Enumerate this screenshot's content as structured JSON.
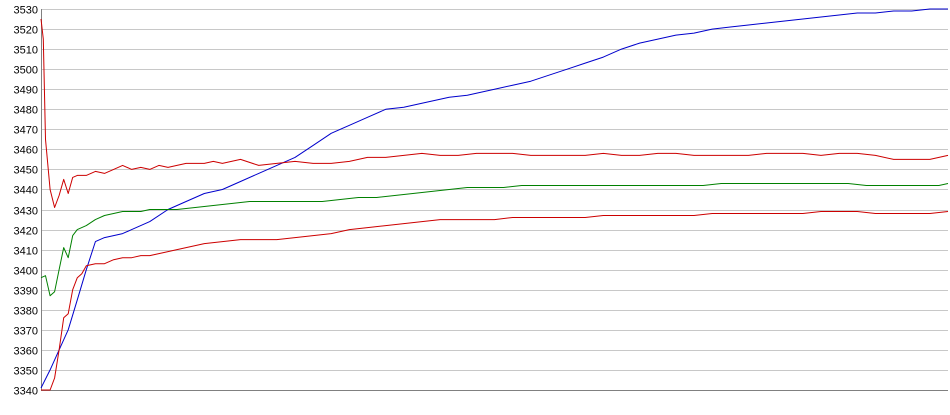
{
  "chart_data": {
    "type": "line",
    "title": "",
    "xlabel": "",
    "ylabel": "",
    "ylim": [
      3340,
      3530
    ],
    "yticks": [
      3340,
      3350,
      3360,
      3370,
      3380,
      3390,
      3400,
      3410,
      3420,
      3430,
      3440,
      3450,
      3460,
      3470,
      3480,
      3490,
      3500,
      3510,
      3520,
      3530
    ],
    "grid": true,
    "legend": "none",
    "xlim": [
      0,
      200
    ],
    "series": [
      {
        "color": "#0000cc",
        "x": [
          0,
          2,
          4,
          6,
          8,
          10,
          12,
          14,
          16,
          18,
          20,
          24,
          28,
          32,
          36,
          40,
          44,
          48,
          52,
          56,
          60,
          64,
          68,
          72,
          76,
          80,
          84,
          88,
          90,
          94,
          98,
          100,
          104,
          108,
          112,
          116,
          120,
          124,
          128,
          132,
          136,
          140,
          144,
          148,
          152,
          156,
          160,
          164,
          168,
          172,
          176,
          180,
          184,
          188,
          192,
          196,
          200
        ],
        "y": [
          3341,
          3350,
          3360,
          3370,
          3385,
          3400,
          3414,
          3416,
          3417,
          3418,
          3420,
          3424,
          3430,
          3434,
          3438,
          3440,
          3444,
          3448,
          3452,
          3456,
          3462,
          3468,
          3472,
          3476,
          3480,
          3481,
          3483,
          3485,
          3486,
          3487,
          3489,
          3490,
          3492,
          3494,
          3497,
          3500,
          3503,
          3506,
          3510,
          3513,
          3515,
          3517,
          3518,
          3520,
          3521,
          3522,
          3523,
          3524,
          3525,
          3526,
          3527,
          3528,
          3528,
          3529,
          3529,
          3530,
          3530
        ]
      },
      {
        "color": "#cc0000",
        "x": [
          0,
          0.5,
          1,
          2,
          3,
          4,
          5,
          6,
          7,
          8,
          10,
          12,
          14,
          16,
          18,
          20,
          22,
          24,
          26,
          28,
          30,
          32,
          34,
          36,
          38,
          40,
          44,
          48,
          52,
          56,
          60,
          64,
          68,
          72,
          76,
          80,
          84,
          88,
          92,
          96,
          100,
          104,
          108,
          112,
          116,
          120,
          124,
          128,
          132,
          136,
          140,
          144,
          148,
          152,
          156,
          160,
          164,
          168,
          172,
          176,
          180,
          184,
          188,
          192,
          196,
          200
        ],
        "y": [
          3525,
          3515,
          3465,
          3440,
          3431,
          3437,
          3445,
          3438,
          3446,
          3447,
          3447,
          3449,
          3448,
          3450,
          3452,
          3450,
          3451,
          3450,
          3452,
          3451,
          3452,
          3453,
          3453,
          3453,
          3454,
          3453,
          3455,
          3452,
          3453,
          3454,
          3453,
          3453,
          3454,
          3456,
          3456,
          3457,
          3458,
          3457,
          3457,
          3458,
          3458,
          3458,
          3457,
          3457,
          3457,
          3457,
          3458,
          3457,
          3457,
          3458,
          3458,
          3457,
          3457,
          3457,
          3457,
          3458,
          3458,
          3458,
          3457,
          3458,
          3458,
          3457,
          3455,
          3455,
          3455,
          3457
        ]
      },
      {
        "color": "#cc0000",
        "x": [
          0,
          1,
          2,
          3,
          4,
          5,
          6,
          7,
          8,
          9,
          10,
          12,
          14,
          16,
          18,
          20,
          22,
          24,
          26,
          28,
          30,
          32,
          36,
          40,
          44,
          48,
          52,
          56,
          60,
          64,
          68,
          72,
          76,
          80,
          84,
          88,
          92,
          96,
          100,
          104,
          108,
          112,
          116,
          120,
          124,
          128,
          132,
          136,
          140,
          144,
          148,
          152,
          156,
          160,
          164,
          168,
          172,
          176,
          180,
          184,
          188,
          192,
          196,
          200
        ],
        "y": [
          3340,
          3340,
          3340,
          3346,
          3360,
          3376,
          3378,
          3390,
          3396,
          3398,
          3402,
          3403,
          3403,
          3405,
          3406,
          3406,
          3407,
          3407,
          3408,
          3409,
          3410,
          3411,
          3413,
          3414,
          3415,
          3415,
          3415,
          3416,
          3417,
          3418,
          3420,
          3421,
          3422,
          3423,
          3424,
          3425,
          3425,
          3425,
          3425,
          3426,
          3426,
          3426,
          3426,
          3426,
          3427,
          3427,
          3427,
          3427,
          3427,
          3427,
          3428,
          3428,
          3428,
          3428,
          3428,
          3428,
          3429,
          3429,
          3429,
          3428,
          3428,
          3428,
          3428,
          3429
        ]
      },
      {
        "color": "#008000",
        "x": [
          0,
          1,
          2,
          3,
          4,
          5,
          6,
          7,
          8,
          9,
          10,
          12,
          14,
          16,
          18,
          20,
          22,
          24,
          26,
          28,
          30,
          34,
          38,
          42,
          46,
          50,
          54,
          58,
          62,
          66,
          70,
          74,
          78,
          82,
          86,
          90,
          94,
          98,
          102,
          106,
          110,
          114,
          118,
          122,
          126,
          130,
          134,
          138,
          142,
          146,
          150,
          154,
          158,
          162,
          166,
          170,
          174,
          178,
          182,
          186,
          190,
          194,
          198,
          200
        ],
        "y": [
          3396,
          3397,
          3387,
          3389,
          3400,
          3411,
          3406,
          3417,
          3420,
          3421,
          3422,
          3425,
          3427,
          3428,
          3429,
          3429,
          3429,
          3430,
          3430,
          3430,
          3430,
          3431,
          3432,
          3433,
          3434,
          3434,
          3434,
          3434,
          3434,
          3435,
          3436,
          3436,
          3437,
          3438,
          3439,
          3440,
          3441,
          3441,
          3441,
          3442,
          3442,
          3442,
          3442,
          3442,
          3442,
          3442,
          3442,
          3442,
          3442,
          3442,
          3443,
          3443,
          3443,
          3443,
          3443,
          3443,
          3443,
          3443,
          3442,
          3442,
          3442,
          3442,
          3442,
          3443
        ]
      }
    ]
  }
}
